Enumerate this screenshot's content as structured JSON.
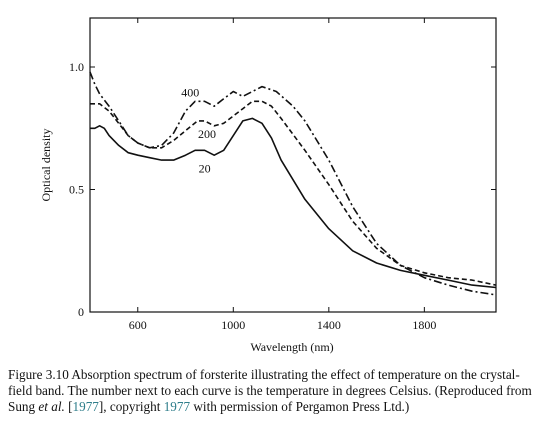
{
  "chart_data": {
    "type": "line",
    "title": "",
    "xlabel": "Wavelength (nm)",
    "ylabel": "Optical density",
    "xlim": [
      400,
      2100
    ],
    "ylim": [
      0,
      1.2
    ],
    "x_ticks": [
      600,
      1000,
      1400,
      1800
    ],
    "x_tick_labels": [
      "600",
      "1000",
      "1400",
      "1800"
    ],
    "y_ticks": [
      0,
      0.5,
      1.0
    ],
    "y_tick_labels": [
      "0",
      "0.5",
      "1.0"
    ],
    "grid": false,
    "legend": "none",
    "series": [
      {
        "name": "400",
        "style": "dashdot",
        "points": [
          [
            400,
            0.98
          ],
          [
            420,
            0.93
          ],
          [
            440,
            0.89
          ],
          [
            480,
            0.84
          ],
          [
            520,
            0.78
          ],
          [
            560,
            0.72
          ],
          [
            600,
            0.69
          ],
          [
            650,
            0.67
          ],
          [
            700,
            0.68
          ],
          [
            750,
            0.73
          ],
          [
            800,
            0.82
          ],
          [
            840,
            0.86
          ],
          [
            880,
            0.86
          ],
          [
            920,
            0.84
          ],
          [
            960,
            0.87
          ],
          [
            1000,
            0.9
          ],
          [
            1040,
            0.88
          ],
          [
            1080,
            0.9
          ],
          [
            1120,
            0.92
          ],
          [
            1180,
            0.9
          ],
          [
            1250,
            0.84
          ],
          [
            1300,
            0.78
          ],
          [
            1400,
            0.62
          ],
          [
            1500,
            0.43
          ],
          [
            1600,
            0.28
          ],
          [
            1700,
            0.19
          ],
          [
            1800,
            0.14
          ],
          [
            1900,
            0.11
          ],
          [
            2000,
            0.085
          ],
          [
            2100,
            0.07
          ]
        ]
      },
      {
        "name": "200",
        "style": "dashed",
        "points": [
          [
            400,
            0.85
          ],
          [
            440,
            0.85
          ],
          [
            480,
            0.82
          ],
          [
            520,
            0.77
          ],
          [
            560,
            0.72
          ],
          [
            600,
            0.69
          ],
          [
            650,
            0.67
          ],
          [
            700,
            0.67
          ],
          [
            750,
            0.7
          ],
          [
            800,
            0.74
          ],
          [
            850,
            0.78
          ],
          [
            880,
            0.78
          ],
          [
            920,
            0.76
          ],
          [
            960,
            0.77
          ],
          [
            1000,
            0.8
          ],
          [
            1040,
            0.83
          ],
          [
            1080,
            0.86
          ],
          [
            1120,
            0.86
          ],
          [
            1160,
            0.84
          ],
          [
            1200,
            0.79
          ],
          [
            1300,
            0.66
          ],
          [
            1400,
            0.52
          ],
          [
            1500,
            0.37
          ],
          [
            1600,
            0.26
          ],
          [
            1700,
            0.19
          ],
          [
            1800,
            0.16
          ],
          [
            1900,
            0.14
          ],
          [
            2000,
            0.13
          ],
          [
            2100,
            0.11
          ]
        ]
      },
      {
        "name": "20",
        "style": "solid",
        "points": [
          [
            400,
            0.75
          ],
          [
            420,
            0.75
          ],
          [
            440,
            0.76
          ],
          [
            460,
            0.75
          ],
          [
            480,
            0.72
          ],
          [
            520,
            0.68
          ],
          [
            560,
            0.65
          ],
          [
            600,
            0.64
          ],
          [
            650,
            0.63
          ],
          [
            700,
            0.62
          ],
          [
            750,
            0.62
          ],
          [
            800,
            0.64
          ],
          [
            840,
            0.66
          ],
          [
            880,
            0.66
          ],
          [
            920,
            0.64
          ],
          [
            960,
            0.66
          ],
          [
            1000,
            0.72
          ],
          [
            1040,
            0.78
          ],
          [
            1080,
            0.79
          ],
          [
            1120,
            0.77
          ],
          [
            1160,
            0.71
          ],
          [
            1200,
            0.62
          ],
          [
            1300,
            0.46
          ],
          [
            1400,
            0.34
          ],
          [
            1500,
            0.25
          ],
          [
            1600,
            0.2
          ],
          [
            1700,
            0.17
          ],
          [
            1800,
            0.15
          ],
          [
            1900,
            0.13
          ],
          [
            2000,
            0.11
          ],
          [
            2100,
            0.1
          ]
        ]
      }
    ],
    "curve_labels": [
      {
        "text": "400",
        "x": 820,
        "y": 0.88
      },
      {
        "text": "200",
        "x": 890,
        "y": 0.71
      },
      {
        "text": "20",
        "x": 880,
        "y": 0.57
      }
    ]
  },
  "caption": {
    "part1": "Figure 3.10 Absorption spectrum of forsterite illustrating the effect of temperature on the crystal-field band. The number next to each curve is the temperature in degrees Celsius. (Reproduced from Sung ",
    "etal": "et al.",
    "part2": " [",
    "ref1": "1977",
    "part3": "], copyright ",
    "ref2": "1977",
    "part4": " with permission of Pergamon Press Ltd.)"
  }
}
